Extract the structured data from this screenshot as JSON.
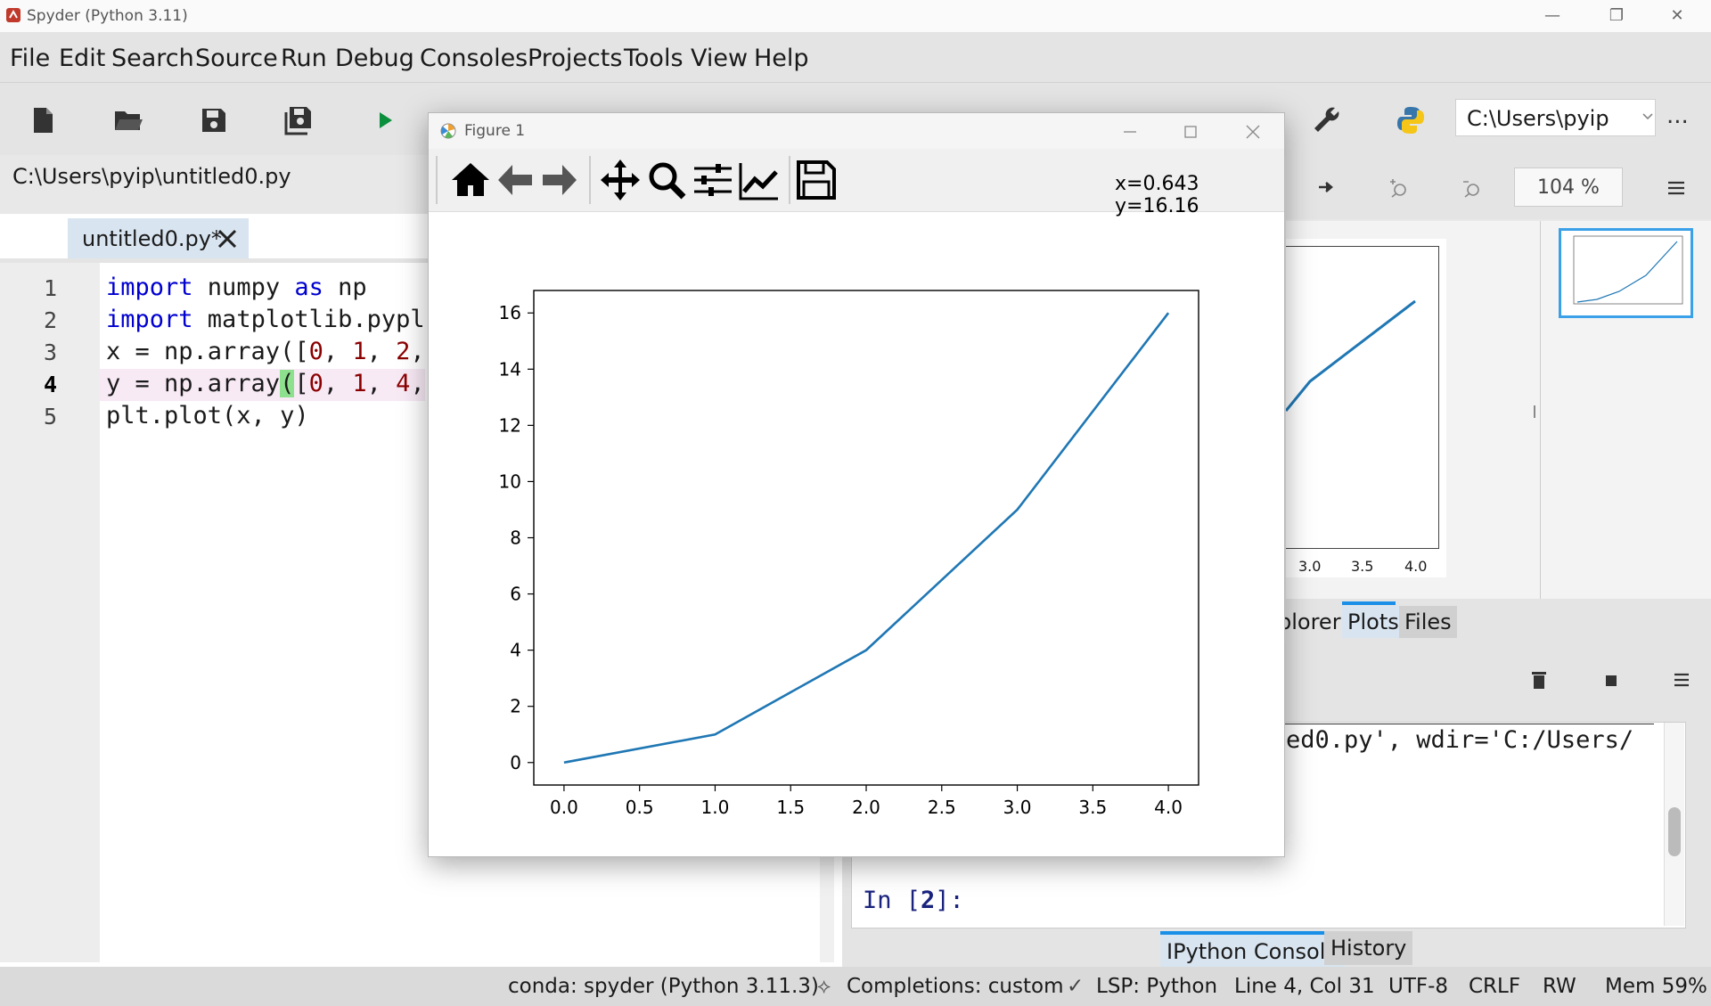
{
  "window": {
    "title": "Spyder (Python 3.11)",
    "controls": [
      "—",
      "❐",
      "✕"
    ]
  },
  "menubar": [
    "File",
    "Edit",
    "Search",
    "Source",
    "Run",
    "Debug",
    "Consoles",
    "Projects",
    "Tools",
    "View",
    "Help"
  ],
  "toolbar": {
    "path": "C:\\Users\\pyip",
    "more": "..."
  },
  "editor": {
    "file_path": "C:\\Users\\pyip\\untitled0.py",
    "tab_label": "untitled0.py*",
    "line_numbers": [
      "1",
      "2",
      "3",
      "4",
      "5"
    ],
    "lines": [
      {
        "kw1": "import",
        "rest1": " numpy ",
        "kw2": "as",
        "rest2": " np"
      },
      {
        "kw1": "import",
        "rest1": " matplotlib.pypl",
        "kw2": "",
        "rest2": ""
      },
      {
        "text": "x = np.array([",
        "n1": "0",
        ",": ", ",
        "n2": "1",
        "c2": ", ",
        "n3": "2",
        "tail": ","
      },
      {
        "text": "y = np.array(",
        "paren": "(",
        "bracket": "[",
        "n1": "0",
        ",": ", ",
        "n2": "1",
        "c2": ", ",
        "n3": "4",
        "tail": ","
      },
      {
        "text": "plt.plot(x, y)"
      }
    ]
  },
  "plots": {
    "zoom": "104 %",
    "tabs": [
      "plorer",
      "Plots",
      "Files"
    ],
    "ticks": [
      "3.0",
      "3.5",
      "4.0"
    ]
  },
  "console": {
    "output": "ed0.py', wdir='C:/Users/",
    "prompt_in": "In [",
    "prompt_num": "2",
    "prompt_end": "]:",
    "tabs": [
      "IPython Console",
      "History"
    ]
  },
  "status": {
    "env": "conda: spyder (Python 3.11.3)",
    "completions": "Completions: custom",
    "lsp": "LSP: Python",
    "position": "Line 4, Col 31",
    "encoding": "UTF-8",
    "eol": "CRLF",
    "rw": "RW",
    "mem": "Mem 59%"
  },
  "figure": {
    "title": "Figure 1",
    "coords": "x=0.643 y=16.16"
  },
  "chart_data": {
    "type": "line",
    "x": [
      0,
      1,
      2,
      3,
      4
    ],
    "series": [
      {
        "values": [
          0,
          1,
          4,
          9,
          16
        ],
        "color": "#1f77b4"
      }
    ],
    "xlim": [
      -0.2,
      4.2
    ],
    "ylim": [
      -0.8,
      16.8
    ],
    "xticks": [
      "0.0",
      "0.5",
      "1.0",
      "1.5",
      "2.0",
      "2.5",
      "3.0",
      "3.5",
      "4.0"
    ],
    "xtick_values": [
      0,
      0.5,
      1,
      1.5,
      2,
      2.5,
      3,
      3.5,
      4
    ],
    "yticks": [
      "0",
      "2",
      "4",
      "6",
      "8",
      "10",
      "12",
      "14",
      "16"
    ],
    "ytick_values": [
      0,
      2,
      4,
      6,
      8,
      10,
      12,
      14,
      16
    ],
    "title": "",
    "xlabel": "",
    "ylabel": "",
    "grid": false
  }
}
